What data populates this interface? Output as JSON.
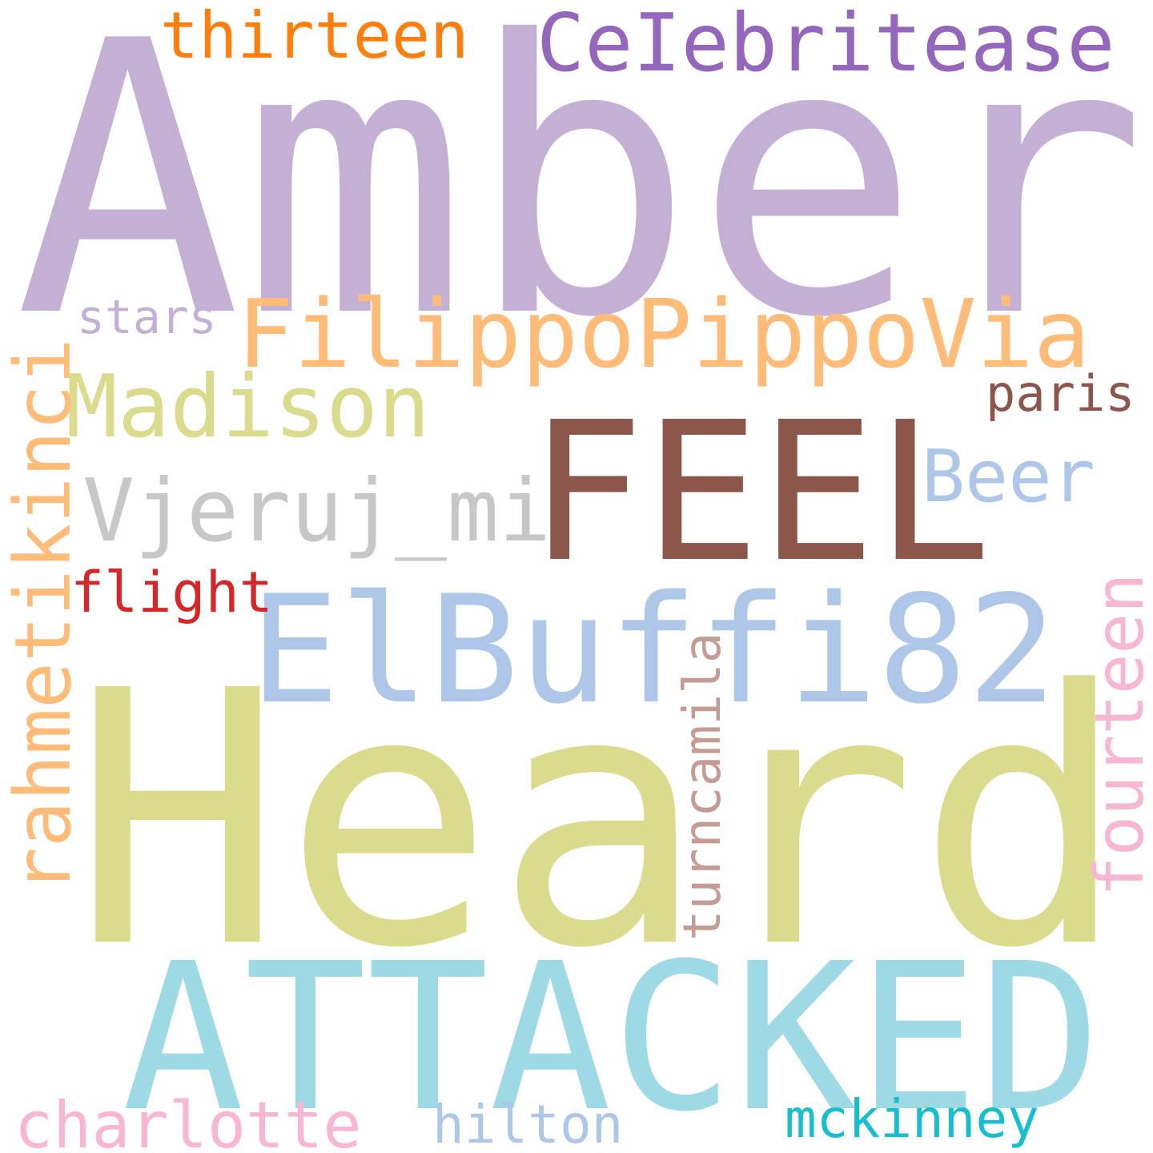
{
  "words": {
    "amber": {
      "text": "Amber",
      "color": "#c5b0d5"
    },
    "heard": {
      "text": "Heard",
      "color": "#dbdb8d"
    },
    "attacked": {
      "text": "ATTACKED",
      "color": "#9edae5"
    },
    "elbuffi": {
      "text": "ElBuffi82",
      "color": "#aec7e8"
    },
    "feel": {
      "text": "FEEL",
      "color": "#8c564b"
    },
    "filippo": {
      "text": "FilippoPippoVia",
      "color": "#ffbb78"
    },
    "celeb": {
      "text": "CeIebritease",
      "color": "#9467bd"
    },
    "madison": {
      "text": "Madison",
      "color": "#dbdb8d"
    },
    "vjeruj": {
      "text": "Vjeruj_mi",
      "color": "#c7c7c7"
    },
    "beer": {
      "text": "Beer",
      "color": "#aec7e8"
    },
    "thirteen": {
      "text": "thirteen",
      "color": "#ff7f0e"
    },
    "paris": {
      "text": "paris",
      "color": "#8c564b"
    },
    "stars": {
      "text": "stars",
      "color": "#c5b0d5"
    },
    "flight": {
      "text": "flight",
      "color": "#d62728"
    },
    "charlotte": {
      "text": "charlotte",
      "color": "#f7b6d2"
    },
    "hilton": {
      "text": "hilton",
      "color": "#aec7e8"
    },
    "mckinney": {
      "text": "mckinney",
      "color": "#17becf"
    },
    "rahmet": {
      "text": "rahmetikinci",
      "color": "#ffbb78"
    },
    "turncamila": {
      "text": "turncamila",
      "color": "#c49c94"
    },
    "fourteen": {
      "text": "fourteen",
      "color": "#f7b6d2"
    }
  }
}
